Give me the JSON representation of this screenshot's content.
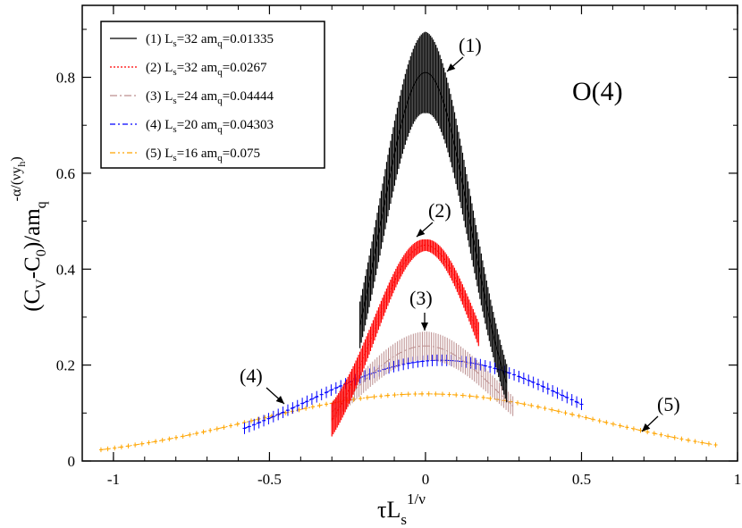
{
  "chart_data": {
    "type": "line",
    "title": "O(4)",
    "xlabel": {
      "main": "τL",
      "sub": "s",
      "sup": "1/ν"
    },
    "ylabel": {
      "p1": "(C",
      "sub1": "V",
      "p2": "-C",
      "sub2": "0",
      "p3": ")/am",
      "sub3": "q",
      "sup": "-α/(νy",
      "supsub": "h",
      "supend": ")"
    },
    "xlim": [
      -1.1,
      1.0
    ],
    "ylim": [
      0,
      0.95
    ],
    "xticks": [
      -1,
      -0.5,
      0,
      0.5,
      1
    ],
    "xtick_labels": [
      "-1",
      "-0.5",
      "0",
      "0.5",
      "1"
    ],
    "yticks": [
      0,
      0.2,
      0.4,
      0.6,
      0.8
    ],
    "ytick_labels": [
      "0",
      "0.2",
      "0.4",
      "0.6",
      "0.8"
    ],
    "series": [
      {
        "id": "s1",
        "name": "(1) L",
        "Ls": "32",
        "am": "0.01335",
        "color": "#000000",
        "dash": "",
        "annotation": "(1)",
        "x_range": [
          -0.21,
          0.26
        ],
        "peak_x": 0.0,
        "peak_y": 0.81,
        "width": 0.145,
        "base": 0.0,
        "err_peak": 0.085,
        "err_edge": 0.04
      },
      {
        "id": "s2",
        "name": "(2) L",
        "Ls": "32",
        "am": "0.0267",
        "color": "#ff0000",
        "dash": "2,2",
        "annotation": "(2)",
        "x_range": [
          -0.3,
          0.17
        ],
        "peak_x": 0.0,
        "peak_y": 0.45,
        "width": 0.165,
        "base": 0.0,
        "err_peak": 0.012,
        "err_edge": 0.035
      },
      {
        "id": "s3",
        "name": "(3) L",
        "Ls": "24",
        "am": "0.04444",
        "color": "#bc8f8f",
        "dash": "8,3,2,3",
        "annotation": "(3)",
        "x_range": [
          -0.3,
          0.28
        ],
        "peak_x": 0.0,
        "peak_y": 0.24,
        "width": 0.23,
        "base": 0.0,
        "err_peak": 0.03,
        "err_edge": 0.02
      },
      {
        "id": "s4",
        "name": "(4) L",
        "Ls": "20",
        "am": "0.04303",
        "color": "#0000ff",
        "dash": "6,3,2,3",
        "annotation": "(4)",
        "x_range": [
          -0.58,
          0.5
        ],
        "peak_x": 0.05,
        "peak_y": 0.21,
        "width": 0.42,
        "base": 0.0,
        "err_peak": 0.012,
        "err_edge": 0.012
      },
      {
        "id": "s5",
        "name": "(5) L",
        "Ls": "16",
        "am": "0.075",
        "color": "#ffa500",
        "dash": "6,3,2,3,2,3",
        "annotation": "(5)",
        "x_range": [
          -1.04,
          0.93
        ],
        "peak_x": 0.0,
        "peak_y": 0.14,
        "width": 0.55,
        "base": 0.0,
        "err_peak": 0.005,
        "err_edge": 0.005
      }
    ],
    "legend_placement": "top-left"
  }
}
